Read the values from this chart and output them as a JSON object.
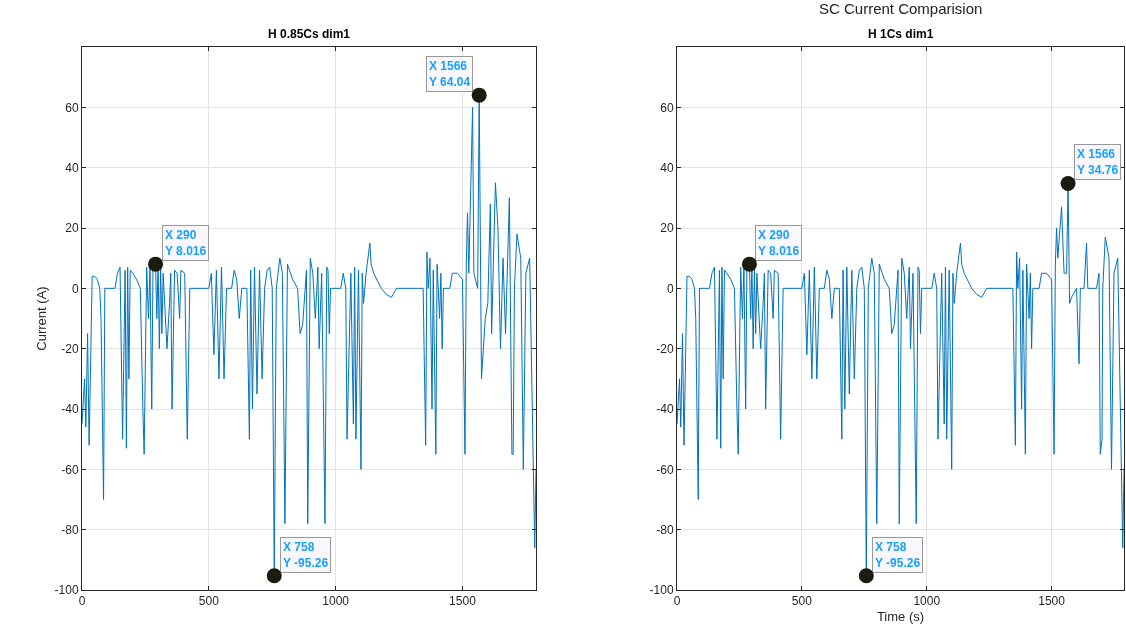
{
  "chart_data": [
    {
      "type": "line",
      "title": "H 0.85Cs dim1",
      "ylabel": "Current (A)",
      "xlim": [
        0,
        1790
      ],
      "ylim": [
        -100,
        80
      ],
      "xticks": [
        0,
        500,
        1000,
        1500
      ],
      "yticks": [
        -100,
        -80,
        -60,
        -40,
        -20,
        0,
        20,
        40,
        60
      ],
      "grid": true,
      "marker": "none",
      "line_style": "solid",
      "annotations": [
        {
          "text": "X 290\nY 8.016",
          "x": 290,
          "y": 8.016
        },
        {
          "text": "X 758\nY -95.26",
          "x": 758,
          "y": -95.26
        },
        {
          "text": "X 1566\nY 64.04",
          "x": 1566,
          "y": 64.04
        }
      ],
      "series": [
        {
          "color": "#0072bd",
          "x": [
            0,
            10,
            15,
            22,
            28,
            35,
            40,
            50,
            60,
            70,
            75,
            85,
            90,
            130,
            140,
            150,
            160,
            170,
            175,
            180,
            185,
            190,
            200,
            215,
            230,
            240,
            245,
            255,
            262,
            268,
            275,
            280,
            290,
            295,
            300,
            305,
            310,
            315,
            320,
            335,
            345,
            350,
            355,
            365,
            375,
            385,
            390,
            405,
            415,
            425,
            500,
            510,
            520,
            530,
            540,
            550,
            560,
            570,
            590,
            600,
            610,
            620,
            630,
            650,
            660,
            665,
            672,
            680,
            690,
            700,
            710,
            720,
            730,
            740,
            750,
            758,
            766,
            780,
            790,
            800,
            810,
            830,
            850,
            860,
            870,
            885,
            890,
            900,
            910,
            920,
            930,
            935,
            945,
            958,
            965,
            970,
            975,
            980,
            1020,
            1030,
            1040,
            1045,
            1060,
            1070,
            1075,
            1080,
            1090,
            1100,
            1105,
            1110,
            1120,
            1135,
            1140,
            1150,
            1180,
            1200,
            1220,
            1240,
            1345,
            1355,
            1360,
            1365,
            1372,
            1380,
            1385,
            1395,
            1400,
            1410,
            1415,
            1420,
            1425,
            1450,
            1460,
            1480,
            1500,
            1510,
            1515,
            1520,
            1525,
            1540,
            1545,
            1560,
            1566,
            1575,
            1590,
            1600,
            1610,
            1615,
            1630,
            1640,
            1650,
            1660,
            1670,
            1685,
            1695,
            1700,
            1705,
            1715,
            1730,
            1740,
            1750,
            1765,
            1785,
            1790
          ],
          "values": [
            -45,
            -30,
            -46,
            -15,
            -52,
            -20,
            4,
            4,
            3,
            0,
            -10,
            -70,
            0,
            0,
            5,
            7,
            -50,
            6,
            -53,
            7,
            -30,
            6,
            5,
            3,
            0,
            -40,
            -55,
            7,
            -10,
            7,
            -40,
            7,
            8.016,
            -10,
            8,
            -20,
            7,
            -15,
            5,
            -20,
            -5,
            5,
            -40,
            6,
            5,
            -10,
            6,
            5,
            -50,
            0,
            0,
            5,
            -22,
            6,
            -30,
            7,
            -30,
            0,
            0,
            6,
            3,
            -10,
            0,
            0,
            -50,
            6,
            -40,
            7,
            -35,
            6,
            -30,
            0,
            6,
            7,
            0,
            -95.26,
            0,
            10,
            5,
            -78,
            8,
            3,
            0,
            -15,
            -12,
            6,
            -78,
            10,
            5,
            -10,
            7,
            -20,
            5,
            -78,
            7,
            6,
            -15,
            0,
            0,
            5,
            0,
            -50,
            5,
            -45,
            7,
            -50,
            6,
            -60,
            5,
            -5,
            5,
            15,
            8,
            5,
            0,
            -2,
            -3,
            0,
            0,
            -52,
            12,
            0,
            10,
            -40,
            6,
            -55,
            8,
            -10,
            5,
            -20,
            0,
            0,
            5,
            5,
            3,
            -55,
            8,
            25,
            5,
            60,
            5,
            0,
            64.04,
            -30,
            -10,
            -5,
            28,
            -15,
            35,
            20,
            -20,
            10,
            -15,
            30,
            -55,
            -55,
            0,
            18,
            10,
            -60,
            5,
            10,
            -86,
            -60
          ]
        }
      ]
    },
    {
      "type": "line",
      "title": "SC Current Comparision",
      "subtitle": "H 1Cs dim1",
      "xlabel": "Time (s)",
      "xlim": [
        0,
        1790
      ],
      "ylim": [
        -100,
        80
      ],
      "xticks": [
        0,
        500,
        1000,
        1500
      ],
      "yticks": [
        -100,
        -80,
        -60,
        -40,
        -20,
        0,
        20,
        40,
        60
      ],
      "grid": true,
      "marker": "none",
      "line_style": "solid",
      "annotations": [
        {
          "text": "X 290\nY 8.016",
          "x": 290,
          "y": 8.016
        },
        {
          "text": "X 758\nY -95.26",
          "x": 758,
          "y": -95.26
        },
        {
          "text": "X 1566\nY 34.76",
          "x": 1566,
          "y": 34.76
        }
      ],
      "series": [
        {
          "color": "#0072bd",
          "x": [
            0,
            10,
            15,
            22,
            28,
            35,
            40,
            50,
            60,
            70,
            75,
            85,
            90,
            130,
            140,
            150,
            160,
            170,
            175,
            180,
            185,
            190,
            200,
            215,
            230,
            240,
            245,
            255,
            262,
            268,
            275,
            280,
            290,
            295,
            300,
            305,
            310,
            315,
            320,
            335,
            345,
            350,
            355,
            365,
            375,
            385,
            390,
            405,
            415,
            425,
            500,
            510,
            520,
            530,
            540,
            550,
            560,
            570,
            590,
            600,
            610,
            620,
            630,
            650,
            660,
            665,
            672,
            680,
            690,
            700,
            710,
            720,
            730,
            740,
            750,
            758,
            766,
            780,
            790,
            800,
            810,
            830,
            850,
            860,
            870,
            885,
            890,
            900,
            910,
            920,
            930,
            935,
            945,
            958,
            965,
            970,
            975,
            980,
            1020,
            1030,
            1040,
            1045,
            1060,
            1070,
            1075,
            1080,
            1090,
            1100,
            1105,
            1110,
            1120,
            1135,
            1140,
            1150,
            1180,
            1200,
            1220,
            1240,
            1345,
            1355,
            1360,
            1365,
            1372,
            1380,
            1385,
            1395,
            1400,
            1410,
            1415,
            1420,
            1425,
            1450,
            1460,
            1480,
            1500,
            1510,
            1515,
            1520,
            1525,
            1540,
            1550,
            1560,
            1566,
            1572,
            1580,
            1600,
            1610,
            1615,
            1630,
            1640,
            1645,
            1680,
            1690,
            1695,
            1702,
            1705,
            1715,
            1730,
            1740,
            1750,
            1765,
            1785,
            1790
          ],
          "values": [
            -45,
            -30,
            -46,
            -15,
            -52,
            -20,
            4,
            4,
            3,
            0,
            -10,
            -70,
            0,
            0,
            5,
            7,
            -50,
            6,
            -53,
            7,
            -30,
            6,
            5,
            3,
            0,
            -40,
            -55,
            7,
            -10,
            7,
            -40,
            7,
            8.016,
            -10,
            8,
            -20,
            7,
            -15,
            5,
            -20,
            -5,
            5,
            -40,
            6,
            5,
            -10,
            6,
            5,
            -50,
            0,
            0,
            5,
            -22,
            6,
            -30,
            7,
            -30,
            0,
            0,
            6,
            3,
            -10,
            0,
            0,
            -50,
            6,
            -40,
            7,
            -35,
            6,
            -30,
            0,
            6,
            7,
            0,
            -95.26,
            0,
            10,
            5,
            -78,
            8,
            3,
            0,
            -15,
            -12,
            6,
            -78,
            10,
            5,
            -10,
            7,
            -20,
            5,
            -78,
            7,
            6,
            -15,
            0,
            0,
            5,
            0,
            -50,
            5,
            -45,
            7,
            -50,
            6,
            -60,
            5,
            -5,
            5,
            15,
            8,
            5,
            0,
            -2,
            -3,
            0,
            0,
            -52,
            12,
            0,
            10,
            -40,
            6,
            -55,
            8,
            -10,
            5,
            -20,
            0,
            0,
            5,
            5,
            3,
            -55,
            8,
            20,
            10,
            27,
            5,
            5,
            34.76,
            -5,
            -3,
            0,
            -25,
            0,
            0,
            15,
            0,
            0,
            5,
            -55,
            -50,
            0,
            17,
            10,
            -60,
            5,
            10,
            -86,
            -60
          ]
        }
      ]
    }
  ]
}
